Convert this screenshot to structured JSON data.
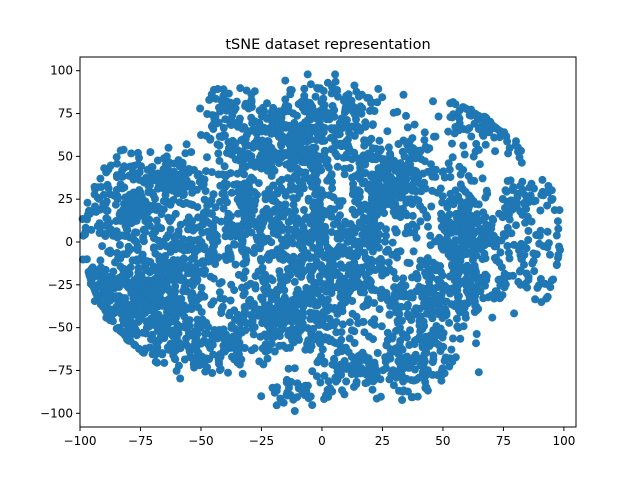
{
  "chart_data": {
    "type": "scatter",
    "title": "tSNE dataset representation",
    "xlabel": "",
    "ylabel": "",
    "xlim": [
      -100,
      105
    ],
    "ylim": [
      -108,
      108
    ],
    "xticks": [
      -100,
      -75,
      -50,
      -25,
      0,
      25,
      50,
      75,
      100
    ],
    "yticks": [
      -100,
      -75,
      -50,
      -25,
      0,
      25,
      50,
      75,
      100
    ],
    "xtick_labels": [
      "−100",
      "−75",
      "−50",
      "−25",
      "0",
      "25",
      "50",
      "75",
      "100"
    ],
    "ytick_labels": [
      "−100",
      "−75",
      "−50",
      "−25",
      "0",
      "25",
      "50",
      "75",
      "100"
    ],
    "grid": false,
    "legend": "none",
    "marker_color": "#1f77b4",
    "series": [
      {
        "clusters": [
          {
            "cx": -72,
            "cy": -35,
            "sx": 13,
            "sy": 14,
            "n": 420
          },
          {
            "cx": -78,
            "cy": 20,
            "sx": 10,
            "sy": 16,
            "n": 260
          },
          {
            "cx": -60,
            "cy": 35,
            "sx": 8,
            "sy": 8,
            "n": 80
          },
          {
            "cx": -55,
            "cy": -5,
            "sx": 10,
            "sy": 12,
            "n": 120
          },
          {
            "cx": -50,
            "cy": -62,
            "sx": 12,
            "sy": 8,
            "n": 140
          },
          {
            "cx": -10,
            "cy": 10,
            "sx": 14,
            "sy": 30,
            "n": 520
          },
          {
            "cx": -20,
            "cy": 60,
            "sx": 12,
            "sy": 12,
            "n": 220
          },
          {
            "cx": 5,
            "cy": 72,
            "sx": 10,
            "sy": 12,
            "n": 180
          },
          {
            "cx": -15,
            "cy": -45,
            "sx": 14,
            "sy": 10,
            "n": 240
          },
          {
            "cx": -35,
            "cy": 20,
            "sx": 8,
            "sy": 20,
            "n": 120
          },
          {
            "cx": 30,
            "cy": 35,
            "sx": 12,
            "sy": 12,
            "n": 300
          },
          {
            "cx": 60,
            "cy": 5,
            "sx": 10,
            "sy": 12,
            "n": 200
          },
          {
            "cx": 45,
            "cy": -35,
            "sx": 12,
            "sy": 12,
            "n": 220
          },
          {
            "cx": 35,
            "cy": -70,
            "sx": 12,
            "sy": 10,
            "n": 140
          },
          {
            "cx": 10,
            "cy": -75,
            "sx": 8,
            "sy": 8,
            "n": 60
          },
          {
            "cx": 70,
            "cy": -25,
            "sx": 12,
            "sy": 6,
            "n": 80
          },
          {
            "cx": 85,
            "cy": 25,
            "sx": 8,
            "sy": 8,
            "n": 60
          },
          {
            "cx": 65,
            "cy": 70,
            "sx": 12,
            "sy": 10,
            "n": 100
          },
          {
            "cx": -90,
            "cy": -20,
            "sx": 4,
            "sy": 6,
            "n": 40
          },
          {
            "cx": 10,
            "cy": -25,
            "sx": 10,
            "sy": 12,
            "n": 120
          },
          {
            "cx": 85,
            "cy": -5,
            "sx": 8,
            "sy": 10,
            "n": 50
          },
          {
            "cx": -10,
            "cy": -88,
            "sx": 6,
            "sy": 4,
            "n": 40
          },
          {
            "cx": -40,
            "cy": 75,
            "sx": 6,
            "sy": 8,
            "n": 50
          },
          {
            "cx": 20,
            "cy": 0,
            "sx": 6,
            "sy": 10,
            "n": 80
          }
        ]
      }
    ]
  }
}
